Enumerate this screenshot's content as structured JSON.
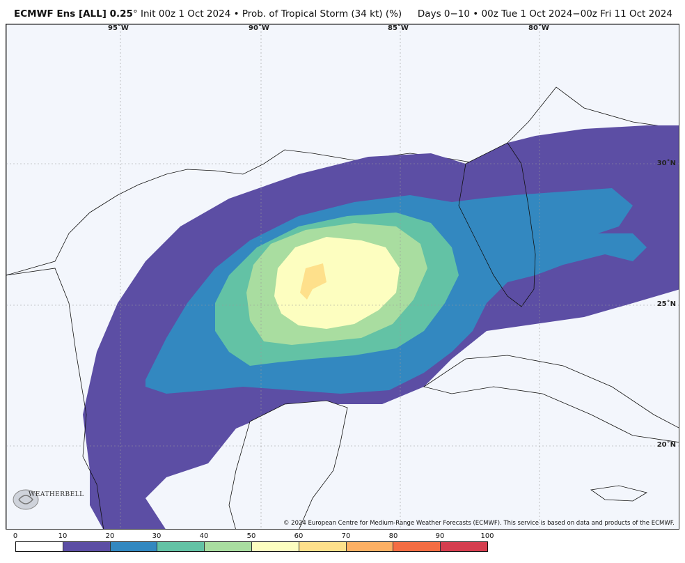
{
  "header": {
    "model": "ECMWF Ens [ALL] 0.25",
    "degree_symbol": "°",
    "product": " Init 00z 1 Oct 2024 • Prob. of Tropical Storm (34 kt) (%)",
    "period": "Days 0−10 • 00z Tue 1 Oct 2024−00z Fri 11 Oct 2024"
  },
  "map": {
    "region": "Gulf of Mexico",
    "longitude_labels": [
      "95˚W",
      "90˚W",
      "85˚W",
      "80˚W"
    ],
    "latitude_labels": [
      "30˚N",
      "25˚N",
      "20˚N"
    ],
    "credit": "© 2024 European Centre for Medium-Range Weather Forecasts (ECMWF). This service is based on data and products of the ECMWF.",
    "logo_text": "WEATHERBELL"
  },
  "colorbar": {
    "ticks": [
      "0",
      "10",
      "20",
      "30",
      "40",
      "50",
      "60",
      "70",
      "80",
      "90",
      "100"
    ],
    "colors": [
      "#ffffff",
      "#5c4ea4",
      "#3388c0",
      "#63c2a5",
      "#a9dda0",
      "#fdfec0",
      "#fee08b",
      "#fdb064",
      "#f46d43",
      "#d53e4f",
      "#9e0142"
    ]
  },
  "probability_levels": {
    "outer_10_20": "#5c4ea4",
    "20_30": "#3388c0",
    "30_40": "#63c2a5",
    "40_50": "#a9dda0",
    "50_60": "#fdfec0",
    "60_70": "#fee08b"
  }
}
